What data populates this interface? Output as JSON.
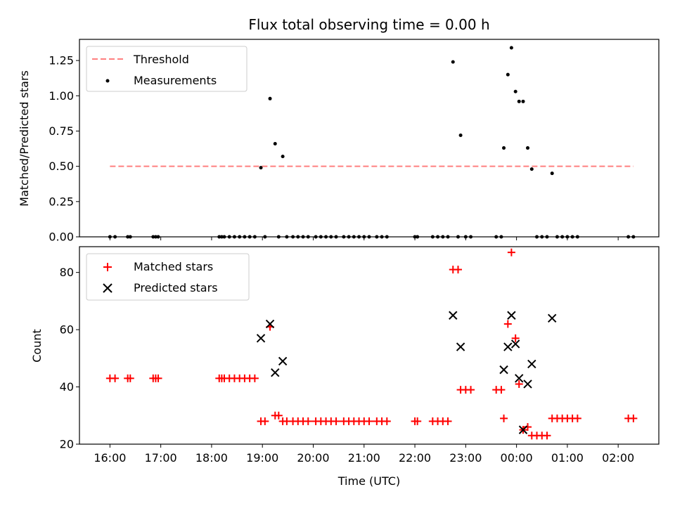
{
  "chart_data": [
    {
      "type": "scatter",
      "title": "Flux total observing time = 0.00 h",
      "xlabel": "",
      "ylabel": "Matched/Predicted stars",
      "ylim": [
        0,
        1.4
      ],
      "xlim": [
        -0.6,
        10.8
      ],
      "yticks": [
        0,
        0.25,
        0.5,
        0.75,
        1.0,
        1.25
      ],
      "ytick_labels": [
        "0.00",
        "0.25",
        "0.50",
        "0.75",
        "1.00",
        "1.25"
      ],
      "legend": [
        "Threshold",
        "Measurements"
      ],
      "legend_position": "top-left",
      "threshold": {
        "name": "Threshold",
        "y": 0.5,
        "x_range": [
          0,
          10.3
        ],
        "color": "#ff8080",
        "style": "dashed"
      },
      "series": [
        {
          "name": "Measurements",
          "color": "#000000",
          "points": [
            [
              0.0,
              0.0
            ],
            [
              0.1,
              0.0
            ],
            [
              0.35,
              0.0
            ],
            [
              0.4,
              0.0
            ],
            [
              0.85,
              0.0
            ],
            [
              0.9,
              0.0
            ],
            [
              0.95,
              0.0
            ],
            [
              2.15,
              0.0
            ],
            [
              2.2,
              0.0
            ],
            [
              2.25,
              0.0
            ],
            [
              2.35,
              0.0
            ],
            [
              2.45,
              0.0
            ],
            [
              2.55,
              0.0
            ],
            [
              2.65,
              0.0
            ],
            [
              2.75,
              0.0
            ],
            [
              2.85,
              0.0
            ],
            [
              2.97,
              0.49
            ],
            [
              3.05,
              0.0
            ],
            [
              3.15,
              0.98
            ],
            [
              3.25,
              0.66
            ],
            [
              3.32,
              0.0
            ],
            [
              3.4,
              0.57
            ],
            [
              3.48,
              0.0
            ],
            [
              3.6,
              0.0
            ],
            [
              3.7,
              0.0
            ],
            [
              3.8,
              0.0
            ],
            [
              3.9,
              0.0
            ],
            [
              4.05,
              0.0
            ],
            [
              4.15,
              0.0
            ],
            [
              4.25,
              0.0
            ],
            [
              4.35,
              0.0
            ],
            [
              4.45,
              0.0
            ],
            [
              4.6,
              0.0
            ],
            [
              4.7,
              0.0
            ],
            [
              4.8,
              0.0
            ],
            [
              4.9,
              0.0
            ],
            [
              5.0,
              0.0
            ],
            [
              5.1,
              0.0
            ],
            [
              5.25,
              0.0
            ],
            [
              5.35,
              0.0
            ],
            [
              5.45,
              0.0
            ],
            [
              6.0,
              0.0
            ],
            [
              6.05,
              0.0
            ],
            [
              6.35,
              0.0
            ],
            [
              6.45,
              0.0
            ],
            [
              6.55,
              0.0
            ],
            [
              6.65,
              0.0
            ],
            [
              6.75,
              1.24
            ],
            [
              6.85,
              0.0
            ],
            [
              6.9,
              0.72
            ],
            [
              7.0,
              0.0
            ],
            [
              7.1,
              0.0
            ],
            [
              7.6,
              0.0
            ],
            [
              7.7,
              0.0
            ],
            [
              7.75,
              0.63
            ],
            [
              7.83,
              1.15
            ],
            [
              7.9,
              1.34
            ],
            [
              7.98,
              1.03
            ],
            [
              8.05,
              0.96
            ],
            [
              8.13,
              0.96
            ],
            [
              8.22,
              0.63
            ],
            [
              8.3,
              0.48
            ],
            [
              8.4,
              0.0
            ],
            [
              8.5,
              0.0
            ],
            [
              8.6,
              0.0
            ],
            [
              8.7,
              0.45
            ],
            [
              8.8,
              0.0
            ],
            [
              8.9,
              0.0
            ],
            [
              9.0,
              0.0
            ],
            [
              9.1,
              0.0
            ],
            [
              9.2,
              0.0
            ],
            [
              10.2,
              0.0
            ],
            [
              10.3,
              0.0
            ]
          ]
        }
      ]
    },
    {
      "type": "scatter",
      "title": "",
      "xlabel": "Time (UTC)",
      "ylabel": "Count",
      "ylim": [
        20,
        89
      ],
      "xlim": [
        -0.6,
        10.8
      ],
      "yticks": [
        20,
        40,
        60,
        80
      ],
      "ytick_labels": [
        "20",
        "40",
        "60",
        "80"
      ],
      "x_ticks": [
        0,
        1,
        2,
        3,
        4,
        5,
        6,
        7,
        8,
        9,
        10
      ],
      "x_tick_labels": [
        "16:00",
        "17:00",
        "18:00",
        "19:00",
        "20:00",
        "21:00",
        "22:00",
        "23:00",
        "00:00",
        "01:00",
        "02:00"
      ],
      "legend": [
        "Matched stars",
        "Predicted stars"
      ],
      "legend_position": "top-left",
      "series": [
        {
          "name": "Matched stars",
          "marker": "plus",
          "color": "#ff0000",
          "points": [
            [
              0.0,
              43
            ],
            [
              0.1,
              43
            ],
            [
              0.35,
              43
            ],
            [
              0.4,
              43
            ],
            [
              0.85,
              43
            ],
            [
              0.9,
              43
            ],
            [
              0.95,
              43
            ],
            [
              2.15,
              43
            ],
            [
              2.2,
              43
            ],
            [
              2.25,
              43
            ],
            [
              2.35,
              43
            ],
            [
              2.45,
              43
            ],
            [
              2.55,
              43
            ],
            [
              2.65,
              43
            ],
            [
              2.75,
              43
            ],
            [
              2.85,
              43
            ],
            [
              2.97,
              28
            ],
            [
              3.05,
              28
            ],
            [
              3.15,
              61
            ],
            [
              3.25,
              30
            ],
            [
              3.32,
              30
            ],
            [
              3.4,
              28
            ],
            [
              3.48,
              28
            ],
            [
              3.6,
              28
            ],
            [
              3.7,
              28
            ],
            [
              3.8,
              28
            ],
            [
              3.9,
              28
            ],
            [
              4.05,
              28
            ],
            [
              4.15,
              28
            ],
            [
              4.25,
              28
            ],
            [
              4.35,
              28
            ],
            [
              4.45,
              28
            ],
            [
              4.6,
              28
            ],
            [
              4.7,
              28
            ],
            [
              4.8,
              28
            ],
            [
              4.9,
              28
            ],
            [
              5.0,
              28
            ],
            [
              5.1,
              28
            ],
            [
              5.25,
              28
            ],
            [
              5.35,
              28
            ],
            [
              5.45,
              28
            ],
            [
              6.0,
              28
            ],
            [
              6.05,
              28
            ],
            [
              6.35,
              28
            ],
            [
              6.45,
              28
            ],
            [
              6.55,
              28
            ],
            [
              6.65,
              28
            ],
            [
              6.75,
              81
            ],
            [
              6.85,
              81
            ],
            [
              6.9,
              39
            ],
            [
              7.0,
              39
            ],
            [
              7.1,
              39
            ],
            [
              7.6,
              39
            ],
            [
              7.7,
              39
            ],
            [
              7.75,
              29
            ],
            [
              7.83,
              62
            ],
            [
              7.9,
              87
            ],
            [
              7.98,
              57
            ],
            [
              8.05,
              41
            ],
            [
              8.13,
              25
            ],
            [
              8.22,
              26
            ],
            [
              8.3,
              23
            ],
            [
              8.4,
              23
            ],
            [
              8.5,
              23
            ],
            [
              8.6,
              23
            ],
            [
              8.7,
              29
            ],
            [
              8.8,
              29
            ],
            [
              8.9,
              29
            ],
            [
              9.0,
              29
            ],
            [
              9.1,
              29
            ],
            [
              9.2,
              29
            ],
            [
              10.2,
              29
            ],
            [
              10.3,
              29
            ]
          ]
        },
        {
          "name": "Predicted stars",
          "marker": "x",
          "color": "#000000",
          "points": [
            [
              2.97,
              57
            ],
            [
              3.15,
              62
            ],
            [
              3.25,
              45
            ],
            [
              3.4,
              49
            ],
            [
              6.75,
              65
            ],
            [
              6.9,
              54
            ],
            [
              7.75,
              46
            ],
            [
              7.83,
              54
            ],
            [
              7.9,
              65
            ],
            [
              7.98,
              55
            ],
            [
              8.05,
              43
            ],
            [
              8.13,
              25
            ],
            [
              8.22,
              41
            ],
            [
              8.3,
              48
            ],
            [
              8.7,
              64
            ]
          ]
        }
      ]
    }
  ]
}
